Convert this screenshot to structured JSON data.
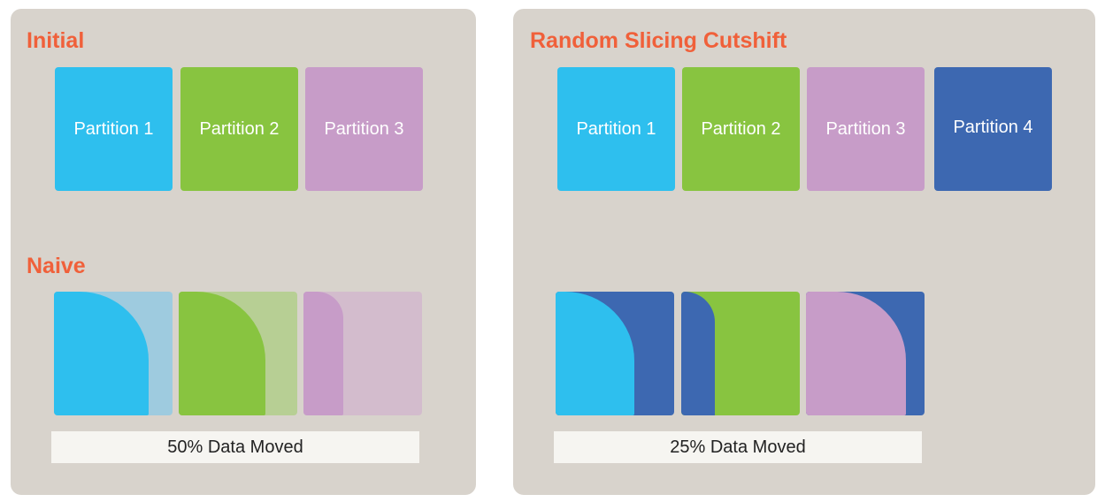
{
  "left_panel": {
    "initial_title": "Initial",
    "initial_partitions": [
      "Partition 1",
      "Partition 2",
      "Partition 3"
    ],
    "naive_title": "Naive",
    "naive_result": "50% Data Moved"
  },
  "right_panel": {
    "title": "Random Slicing Cutshift",
    "partitions": [
      "Partition 1",
      "Partition 2",
      "Partition 3",
      "Partition 4"
    ],
    "result": "25% Data Moved"
  },
  "colors": {
    "partition_1": "#2ebfee",
    "partition_2": "#88c440",
    "partition_3": "#c79cc8",
    "partition_4": "#3d68b1",
    "heading": "#f0603a",
    "panel_background": "#d8d3cc"
  }
}
